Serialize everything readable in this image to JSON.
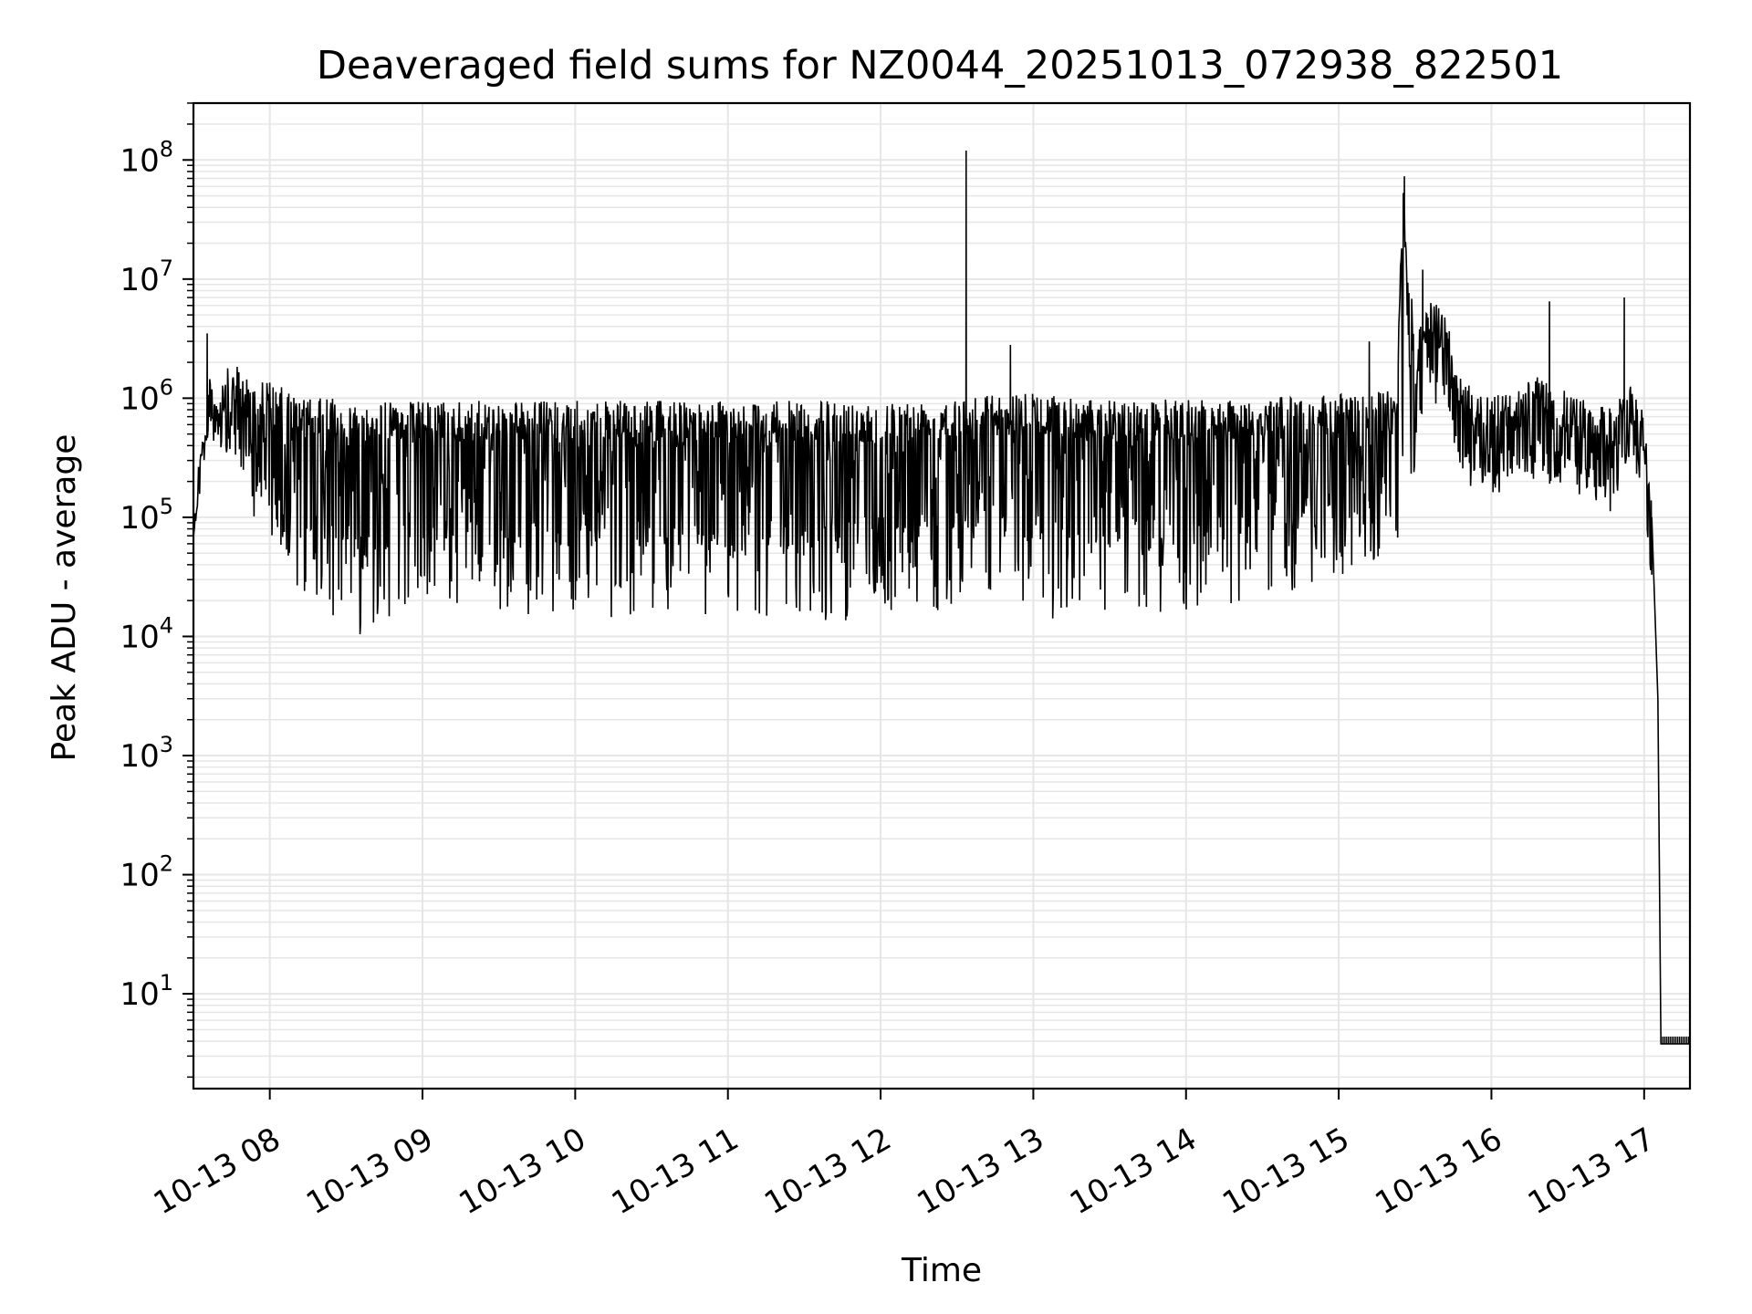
{
  "chart_data": {
    "type": "line",
    "title": "Deaveraged field sums for NZ0044_20251013_072938_822501",
    "xlabel": "Time",
    "ylabel": "Peak ADU - average",
    "yscale": "log",
    "ylim": [
      1.6,
      300000000
    ],
    "xlim": [
      7.5,
      17.3
    ],
    "grid": true,
    "line_color": "#000000",
    "grid_color": "#e6e6e6",
    "x_ticks": [
      {
        "value": 8,
        "label": "10-13 08"
      },
      {
        "value": 9,
        "label": "10-13 09"
      },
      {
        "value": 10,
        "label": "10-13 10"
      },
      {
        "value": 11,
        "label": "10-13 11"
      },
      {
        "value": 12,
        "label": "10-13 12"
      },
      {
        "value": 13,
        "label": "10-13 13"
      },
      {
        "value": 14,
        "label": "10-13 14"
      },
      {
        "value": 15,
        "label": "10-13 15"
      },
      {
        "value": 16,
        "label": "10-13 16"
      },
      {
        "value": 17,
        "label": "10-13 17"
      }
    ],
    "y_ticks": [
      {
        "value": 10,
        "base": "10",
        "exp": "1"
      },
      {
        "value": 100,
        "base": "10",
        "exp": "2"
      },
      {
        "value": 1000,
        "base": "10",
        "exp": "3"
      },
      {
        "value": 10000,
        "base": "10",
        "exp": "4"
      },
      {
        "value": 100000,
        "base": "10",
        "exp": "5"
      },
      {
        "value": 1000000,
        "base": "10",
        "exp": "6"
      },
      {
        "value": 10000000,
        "base": "10",
        "exp": "7"
      },
      {
        "value": 100000000,
        "base": "10",
        "exp": "8"
      }
    ],
    "series": [
      {
        "name": "Peak ADU - average",
        "envelope": [
          {
            "t": 7.5,
            "high": 180000,
            "low": 140000
          },
          {
            "t": 7.55,
            "high": 450000,
            "low": 300000
          },
          {
            "t": 7.6,
            "high": 1500000,
            "low": 600000
          },
          {
            "t": 7.65,
            "high": 1300000,
            "low": 500000
          },
          {
            "t": 7.75,
            "high": 2000000,
            "low": 300000
          },
          {
            "t": 7.85,
            "high": 1600000,
            "low": 150000
          },
          {
            "t": 7.95,
            "high": 1500000,
            "low": 60000
          },
          {
            "t": 8.05,
            "high": 1300000,
            "low": 25000
          },
          {
            "t": 8.2,
            "high": 1000000,
            "low": 22000
          },
          {
            "t": 8.4,
            "high": 1000000,
            "low": 15000
          },
          {
            "t": 8.6,
            "high": 900000,
            "low": 10000
          },
          {
            "t": 8.8,
            "high": 950000,
            "low": 15000
          },
          {
            "t": 9.2,
            "high": 950000,
            "low": 16000
          },
          {
            "t": 9.8,
            "high": 950000,
            "low": 15000
          },
          {
            "t": 10.5,
            "high": 950000,
            "low": 14000
          },
          {
            "t": 11.0,
            "high": 950000,
            "low": 14000
          },
          {
            "t": 11.5,
            "high": 950000,
            "low": 12000
          },
          {
            "t": 12.0,
            "high": 950000,
            "low": 15000
          },
          {
            "t": 12.4,
            "high": 1000000,
            "low": 15000
          },
          {
            "t": 12.6,
            "high": 1100000,
            "low": 30000
          },
          {
            "t": 13.0,
            "high": 1100000,
            "low": 15000
          },
          {
            "t": 13.3,
            "high": 1000000,
            "low": 10000
          },
          {
            "t": 13.7,
            "high": 950000,
            "low": 14000
          },
          {
            "t": 14.0,
            "high": 1000000,
            "low": 15000
          },
          {
            "t": 14.5,
            "high": 1000000,
            "low": 20000
          },
          {
            "t": 15.0,
            "high": 1100000,
            "low": 30000
          },
          {
            "t": 15.38,
            "high": 1200000,
            "low": 50000
          },
          {
            "t": 15.42,
            "high": 60000000,
            "low": 100000
          },
          {
            "t": 15.5,
            "high": 3000000,
            "low": 200000
          },
          {
            "t": 15.6,
            "high": 8000000,
            "low": 1000000
          },
          {
            "t": 15.7,
            "high": 5000000,
            "low": 600000
          },
          {
            "t": 15.8,
            "high": 1500000,
            "low": 200000
          },
          {
            "t": 16.0,
            "high": 1000000,
            "low": 150000
          },
          {
            "t": 16.3,
            "high": 1500000,
            "low": 180000
          },
          {
            "t": 16.6,
            "high": 1000000,
            "low": 150000
          },
          {
            "t": 16.8,
            "high": 800000,
            "low": 100000
          },
          {
            "t": 16.9,
            "high": 1500000,
            "low": 300000
          },
          {
            "t": 17.0,
            "high": 800000,
            "low": 200000
          },
          {
            "t": 17.05,
            "high": 150000,
            "low": 20000
          }
        ],
        "spikes": [
          {
            "t": 7.59,
            "value": 3500000
          },
          {
            "t": 12.56,
            "value": 120000000
          },
          {
            "t": 12.85,
            "value": 2800000
          },
          {
            "t": 15.2,
            "value": 3000000
          },
          {
            "t": 15.43,
            "value": 73000000
          },
          {
            "t": 15.55,
            "value": 12000000
          },
          {
            "t": 16.38,
            "value": 6500000
          },
          {
            "t": 16.87,
            "value": 7000000
          }
        ],
        "tail": [
          {
            "t": 17.05,
            "value": 100000
          },
          {
            "t": 17.09,
            "value": 3000
          },
          {
            "t": 17.11,
            "value": 3.8
          },
          {
            "t": 17.3,
            "value": 3.8
          }
        ]
      }
    ]
  }
}
